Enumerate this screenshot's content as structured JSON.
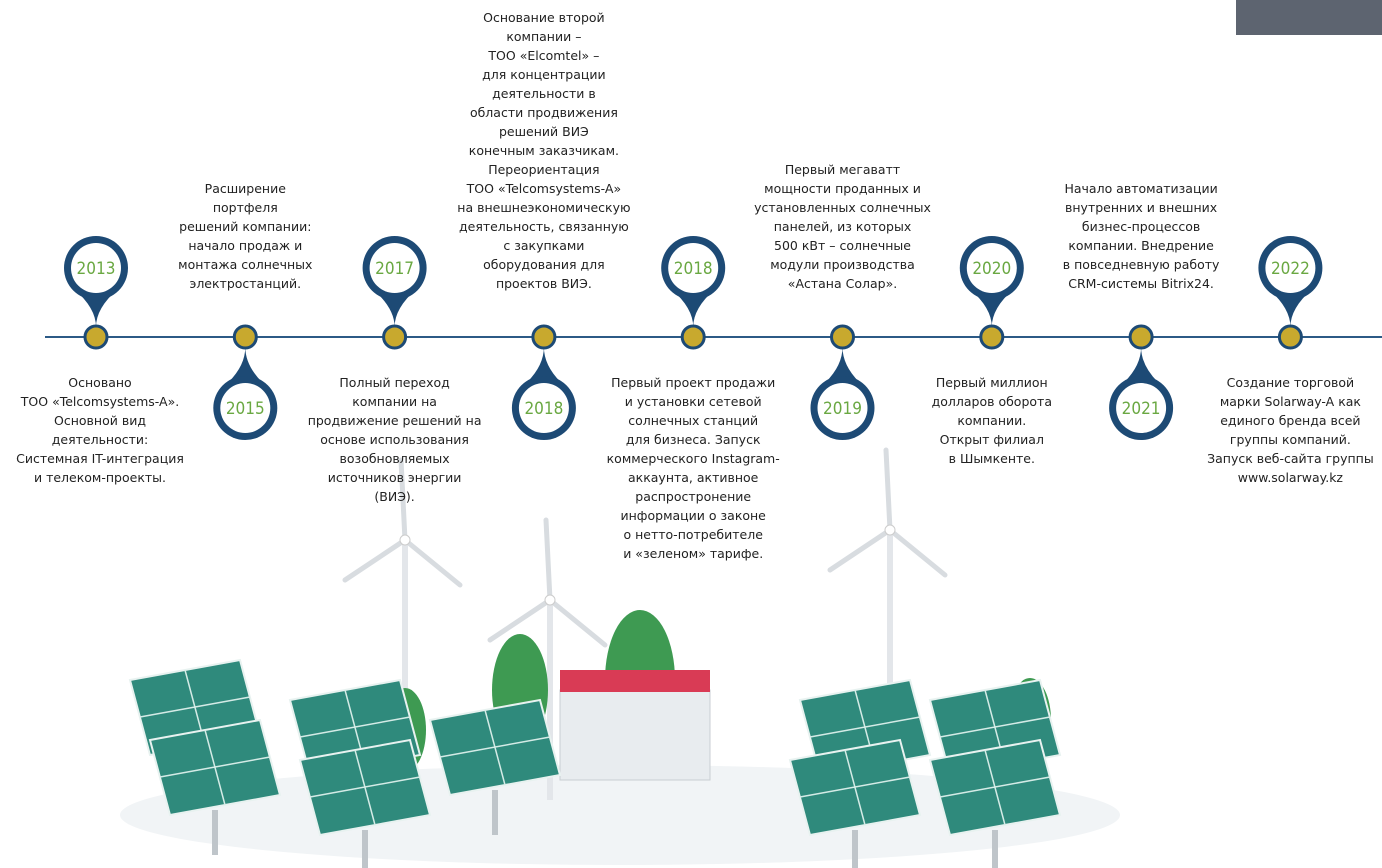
{
  "events": [
    {
      "year": "2013",
      "lines": [
        "Основано",
        "ТОО «Telcomsystems-A».",
        "Основной вид",
        "деятельности:",
        "Системная IT-интеграция",
        "и телеком-проекты."
      ]
    },
    {
      "year": "2015",
      "lines": [
        "Расширение",
        "портфеля",
        "решений компании:",
        "начало продаж и",
        "монтажа солнечных",
        "электростанций."
      ]
    },
    {
      "year": "2017",
      "lines": [
        "Полный переход",
        "компании на",
        "продвижение решений на",
        "основе использования",
        "возобновляемых",
        "источников энергии",
        "(ВИЭ)."
      ]
    },
    {
      "year": "2018",
      "lines": [
        "Основание второй",
        "компании –",
        "ТОО «Elcomtel» –",
        "для концентрации",
        "деятельности в",
        "области продвижения",
        "решений ВИЭ",
        "конечным заказчикам.",
        "Переориентация",
        "ТОО «Telcomsystems-A»",
        "на внешнеэкономическую",
        "деятельность, связанную",
        "с закупками",
        "оборудования для",
        "проектов ВИЭ."
      ]
    },
    {
      "year": "2018",
      "lines": [
        "Первый проект продажи",
        "и установки сетевой",
        "солнечных станций",
        "для бизнеса. Запуск",
        "коммерческого Instagram-",
        "аккаунта, активное",
        "распростронение",
        "информации о законе",
        "о нетто-потребителе",
        "и «зеленом» тарифе."
      ]
    },
    {
      "year": "2019",
      "lines": [
        "Первый мегаватт",
        "мощности проданных и",
        "установленных солнечных",
        "панелей, из которых",
        "500 кВт – солнечные",
        "модули производства",
        "«Астана Солар»."
      ]
    },
    {
      "year": "2020",
      "lines": [
        "Первый миллион",
        "долларов оборота",
        "компании.",
        "Открыт филиал",
        "в Шымкенте."
      ]
    },
    {
      "year": "2021",
      "lines": [
        "Начало автоматизации",
        "внутренних и внешних",
        "бизнес-процессов",
        "компании. Внедрение",
        "в повседневную работу",
        "CRM-системы Bitrix24."
      ]
    },
    {
      "year": "2022",
      "lines": [
        "Создание торговой",
        "марки Solarway-A как",
        "единого бренда всей",
        "группы компаний.",
        "Запуск веб-сайта группы",
        "www.solarway.kz"
      ]
    }
  ]
}
